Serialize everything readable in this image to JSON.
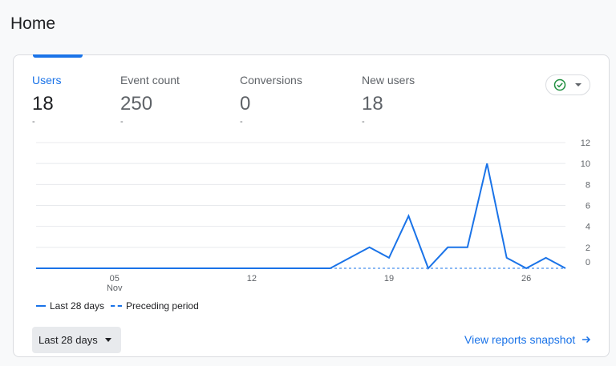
{
  "page": {
    "title": "Home"
  },
  "metrics": [
    {
      "label": "Users",
      "value": "18",
      "change": "-",
      "active": true
    },
    {
      "label": "Event count",
      "value": "250",
      "change": "-",
      "active": false
    },
    {
      "label": "Conversions",
      "value": "0",
      "change": "-",
      "active": false
    },
    {
      "label": "New users",
      "value": "18",
      "change": "-",
      "active": false
    }
  ],
  "status_icon": "check-circle-icon",
  "colors": {
    "accent": "#1a73e8",
    "status_green": "#1e8e3e",
    "grid": "#e8eaed"
  },
  "chart_data": {
    "type": "line",
    "x_ticks": [
      {
        "day": 5,
        "label": "05",
        "sublabel": "Nov"
      },
      {
        "day": 12,
        "label": "12",
        "sublabel": ""
      },
      {
        "day": 19,
        "label": "19",
        "sublabel": ""
      },
      {
        "day": 26,
        "label": "26",
        "sublabel": ""
      }
    ],
    "y_ticks": [
      0,
      2,
      4,
      6,
      8,
      10,
      12
    ],
    "ylim": [
      0,
      12
    ],
    "xlim": [
      1,
      28
    ],
    "y_axis_position": "right",
    "grid": true,
    "series": [
      {
        "name": "Last 28 days",
        "style": "solid",
        "days": [
          1,
          2,
          3,
          4,
          5,
          6,
          7,
          8,
          9,
          10,
          11,
          12,
          13,
          14,
          15,
          16,
          17,
          18,
          19,
          20,
          21,
          22,
          23,
          24,
          25,
          26,
          27,
          28
        ],
        "values": [
          0,
          0,
          0,
          0,
          0,
          0,
          0,
          0,
          0,
          0,
          0,
          0,
          0,
          0,
          0,
          0,
          1,
          2,
          1,
          5,
          0,
          2,
          2,
          10,
          1,
          0,
          1,
          0
        ]
      },
      {
        "name": "Preceding period",
        "style": "dashed",
        "days": [
          1,
          2,
          3,
          4,
          5,
          6,
          7,
          8,
          9,
          10,
          11,
          12,
          13,
          14,
          15,
          16,
          17,
          18,
          19,
          20,
          21,
          22,
          23,
          24,
          25,
          26,
          27,
          28
        ],
        "values": [
          0,
          0,
          0,
          0,
          0,
          0,
          0,
          0,
          0,
          0,
          0,
          0,
          0,
          0,
          0,
          0,
          0,
          0,
          0,
          0,
          0,
          0,
          0,
          0,
          0,
          0,
          0,
          0
        ]
      }
    ],
    "legend": {
      "position": "bottom-left"
    }
  },
  "footer": {
    "range_label": "Last 28 days",
    "snapshot_label": "View reports snapshot"
  }
}
